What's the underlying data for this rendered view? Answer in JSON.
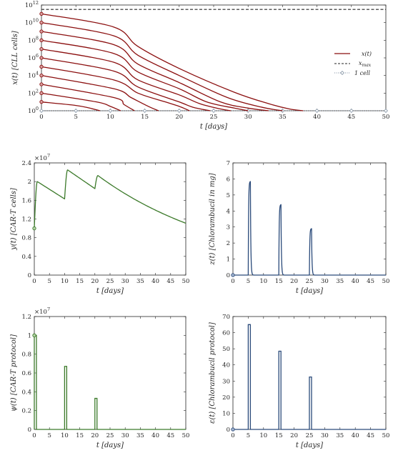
{
  "chart_data": [
    {
      "id": "x",
      "type": "line",
      "xlabel": "t [days]",
      "ylabel": "x(t) [CLL cells]",
      "xlim": [
        0,
        50
      ],
      "ylim_log10": [
        0,
        12
      ],
      "yscale": "log",
      "xticks": [
        "0",
        "5",
        "10",
        "15",
        "20",
        "25",
        "30",
        "35",
        "40",
        "45",
        "50"
      ],
      "yticks": [
        "10^0",
        "10^2",
        "10^4",
        "10^6",
        "10^8",
        "10^10",
        "10^12"
      ],
      "series": [
        {
          "name": "x(t)",
          "color": "#8b0f0f",
          "style": "solid",
          "description_initial_log10": [
            11,
            10,
            9,
            8,
            7,
            6,
            5,
            4,
            3,
            2,
            1
          ],
          "curves": [
            {
              "x0_log10": 11,
              "x": [
                0,
                10.5,
                14,
                20,
                28,
                33,
                36,
                38
              ],
              "y_log10": [
                11,
                9.5,
                7.3,
                4.8,
                2.1,
                0.8,
                0.2,
                0
              ]
            },
            {
              "x0_log10": 10,
              "x": [
                0,
                10.5,
                14,
                20,
                27,
                32,
                35
              ],
              "y_log10": [
                10,
                8.5,
                6.3,
                4.0,
                1.5,
                0.4,
                0
              ]
            },
            {
              "x0_log10": 9,
              "x": [
                0,
                10.5,
                14,
                20,
                26,
                30,
                33
              ],
              "y_log10": [
                9,
                7.5,
                5.3,
                3.2,
                1.0,
                0.3,
                0
              ]
            },
            {
              "x0_log10": 8,
              "x": [
                0,
                10.5,
                14,
                20,
                24,
                28,
                30
              ],
              "y_log10": [
                8,
                6.5,
                4.4,
                2.5,
                1.0,
                0.3,
                0
              ]
            },
            {
              "x0_log10": 7,
              "x": [
                0,
                10.5,
                14,
                20,
                23,
                26,
                27.5
              ],
              "y_log10": [
                7,
                5.5,
                3.5,
                1.8,
                0.8,
                0.2,
                0
              ]
            },
            {
              "x0_log10": 6,
              "x": [
                0,
                10.5,
                14,
                20,
                22,
                24.5
              ],
              "y_log10": [
                6,
                4.5,
                2.7,
                1.0,
                0.4,
                0
              ]
            },
            {
              "x0_log10": 5,
              "x": [
                0,
                10.5,
                14,
                18,
                20,
                21.5
              ],
              "y_log10": [
                5,
                3.5,
                2.0,
                1.0,
                0.5,
                0
              ]
            },
            {
              "x0_log10": 4,
              "x": [
                0,
                10.5,
                13,
                15.5,
                17
              ],
              "y_log10": [
                4,
                2.5,
                1.5,
                0.5,
                0
              ]
            },
            {
              "x0_log10": 3,
              "x": [
                0,
                10.5,
                12,
                13.5
              ],
              "y_log10": [
                3,
                1.5,
                0.7,
                0
              ]
            },
            {
              "x0_log10": 2,
              "x": [
                0,
                8,
                10,
                11.5
              ],
              "y_log10": [
                2,
                1.0,
                0.5,
                0
              ]
            },
            {
              "x0_log10": 1,
              "x": [
                0,
                5,
                7,
                8.5
              ],
              "y_log10": [
                1,
                0.6,
                0.3,
                0
              ]
            }
          ]
        },
        {
          "name": "x_max",
          "color": "#262626",
          "style": "dashed",
          "y_log10": 11.5
        },
        {
          "name": "1 cell",
          "color": "#7f8fa0",
          "style": "dotted",
          "y_log10": 0,
          "markers_x": [
            0,
            5,
            10,
            15,
            20,
            25,
            30,
            35,
            40,
            45,
            50
          ]
        }
      ],
      "legend": {
        "position": "right",
        "entries": [
          "x(t)",
          "x",
          "max",
          "1 cell"
        ]
      }
    },
    {
      "id": "y",
      "type": "line",
      "xlabel": "t [days]",
      "ylabel": "y(t) [CAR-T cells]",
      "xlim": [
        0,
        50
      ],
      "ylim": [
        0,
        2.4
      ],
      "y_multiplier": "×10",
      "y_exponent": "7",
      "xticks": [
        "0",
        "5",
        "10",
        "15",
        "20",
        "25",
        "30",
        "35",
        "40",
        "45",
        "50"
      ],
      "yticks": [
        "0",
        "0.4",
        "0.8",
        "1.2",
        "1.6",
        "2",
        "2.4"
      ],
      "color": "#3c7a2a",
      "x": [
        0,
        0.01,
        1,
        11,
        11.01,
        20.5,
        20.51,
        21.5,
        50
      ],
      "y": [
        1.0,
        1.0,
        2.0,
        1.63,
        1.63,
        1.85,
        1.85,
        2.13,
        1.1
      ],
      "peak_point": {
        "x": 11.5,
        "y": 2.25
      },
      "start_point": {
        "x": 0,
        "y": 1.0
      }
    },
    {
      "id": "z",
      "type": "line",
      "xlabel": "t [days]",
      "ylabel": "z(t) [Chlorambucil in mg]",
      "xlim": [
        0,
        50
      ],
      "ylim": [
        0,
        7
      ],
      "xticks": [
        "0",
        "5",
        "10",
        "15",
        "20",
        "25",
        "30",
        "35",
        "40",
        "45",
        "50"
      ],
      "yticks": [
        "0",
        "1",
        "2",
        "3",
        "4",
        "5",
        "6",
        "7"
      ],
      "color": "#2a4a7a",
      "pulses": [
        {
          "t": 5,
          "peak": 5.85
        },
        {
          "t": 15,
          "peak": 4.4
        },
        {
          "t": 25,
          "peak": 2.9
        }
      ],
      "start_point": {
        "x": 0,
        "y": 0
      }
    },
    {
      "id": "psi",
      "type": "line",
      "xlabel": "t [days]",
      "ylabel": "ψ(t) [CAR-T protocol]",
      "xlim": [
        0,
        50
      ],
      "ylim": [
        0,
        1.2
      ],
      "y_multiplier": "×10",
      "y_exponent": "7",
      "xticks": [
        "0",
        "5",
        "10",
        "15",
        "20",
        "25",
        "30",
        "35",
        "40",
        "45",
        "50"
      ],
      "yticks": [
        "0",
        "0.2",
        "0.4",
        "0.6",
        "0.8",
        "1",
        "1.2"
      ],
      "color": "#3c7a2a",
      "pulses": [
        {
          "t0": 0,
          "t1": 0.7,
          "value": 1.0
        },
        {
          "t0": 10,
          "t1": 10.7,
          "value": 0.67
        },
        {
          "t0": 20,
          "t1": 20.7,
          "value": 0.33
        }
      ],
      "start_point": {
        "x": 0,
        "y": 1.0
      }
    },
    {
      "id": "eps",
      "type": "line",
      "xlabel": "t [days]",
      "ylabel": "ε(t) [Chlorambucil protocol]",
      "xlim": [
        0,
        50
      ],
      "ylim": [
        0,
        70
      ],
      "xticks": [
        "0",
        "5",
        "10",
        "15",
        "20",
        "25",
        "30",
        "35",
        "40",
        "45",
        "50"
      ],
      "yticks": [
        "0",
        "10",
        "20",
        "30",
        "40",
        "50",
        "60",
        "70"
      ],
      "color": "#2a4a7a",
      "pulses": [
        {
          "t0": 5,
          "t1": 5.7,
          "value": 65
        },
        {
          "t0": 15,
          "t1": 15.7,
          "value": 48.5
        },
        {
          "t0": 25,
          "t1": 25.7,
          "value": 32.5
        }
      ],
      "start_point": {
        "x": 0,
        "y": 0
      }
    }
  ]
}
